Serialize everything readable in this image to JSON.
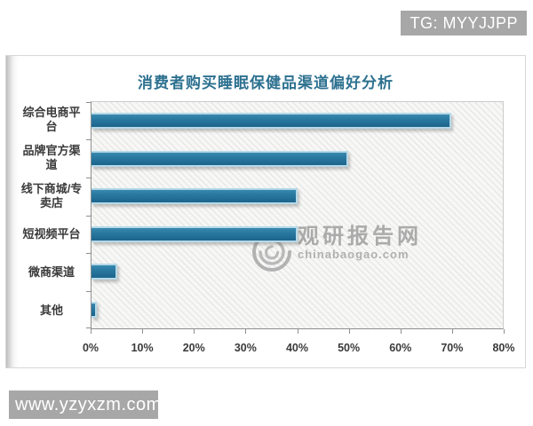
{
  "badges": {
    "tg": "TG: MYYJJPP",
    "site": "www.yzyxzm.com"
  },
  "watermark": {
    "name": "观研报告网",
    "domain": "chinabaogao.com"
  },
  "chart_data": {
    "type": "bar",
    "orientation": "horizontal",
    "title": "消费者购买睡眠保健品渠道偏好分析",
    "categories": [
      "综合电商平\n台",
      "品牌官方渠\n道",
      "线下商城/专\n卖店",
      "短视频平台",
      "微商渠道",
      "其他"
    ],
    "values": [
      70,
      50,
      40,
      40,
      5,
      1
    ],
    "unit": "%",
    "xlim": [
      0,
      80
    ],
    "x_ticks": [
      "0%",
      "10%",
      "20%",
      "30%",
      "40%",
      "50%",
      "60%",
      "70%",
      "80%"
    ],
    "grid": false,
    "legend": "none",
    "bar_color": "#1c648c",
    "bar_border_color": "#b5d9e8",
    "title_color": "#2d7190"
  }
}
